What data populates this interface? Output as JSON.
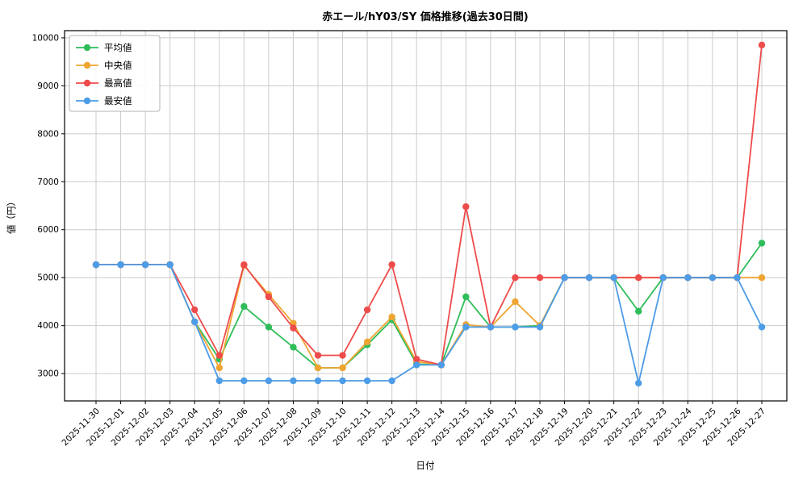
{
  "chart_data": {
    "type": "line",
    "title": "赤エール/hY03/SY 価格推移(過去30日間)",
    "xlabel": "日付",
    "ylabel": "値（円）",
    "grid": true,
    "grid_color": "#cccccc",
    "legend_position": "upper left",
    "x_tick_rotation": 45,
    "ylim": [
      2430,
      10150
    ],
    "yticks": [
      3000,
      4000,
      5000,
      6000,
      7000,
      8000,
      9000,
      10000
    ],
    "categories": [
      "2025-11-30",
      "2025-12-01",
      "2025-12-02",
      "2025-12-03",
      "2025-12-04",
      "2025-12-05",
      "2025-12-06",
      "2025-12-07",
      "2025-12-08",
      "2025-12-09",
      "2025-12-10",
      "2025-12-11",
      "2025-12-12",
      "2025-12-13",
      "2025-12-14",
      "2025-12-15",
      "2025-12-16",
      "2025-12-17",
      "2025-12-18",
      "2025-12-19",
      "2025-12-20",
      "2025-12-21",
      "2025-12-22",
      "2025-12-23",
      "2025-12-24",
      "2025-12-25",
      "2025-12-26",
      "2025-12-27"
    ],
    "series": [
      {
        "id": "mean",
        "name": "平均値",
        "color": "#2ebd59",
        "values": [
          5270,
          5270,
          5270,
          5270,
          4080,
          3300,
          4400,
          3970,
          3550,
          3120,
          3120,
          3600,
          4120,
          3200,
          3180,
          4600,
          3970,
          3970,
          4000,
          5000,
          5000,
          5000,
          4300,
          5000,
          5000,
          5000,
          5000,
          5720
        ]
      },
      {
        "id": "median",
        "name": "中央値",
        "color": "#f0a432",
        "values": [
          5270,
          5270,
          5270,
          5270,
          4080,
          3120,
          5250,
          4650,
          4050,
          3120,
          3120,
          3660,
          4180,
          3250,
          3180,
          4020,
          3970,
          4500,
          4000,
          5000,
          5000,
          5000,
          5000,
          5000,
          5000,
          5000,
          5000,
          5000
        ]
      },
      {
        "id": "max",
        "name": "最高値",
        "color": "#ee4b4b",
        "values": [
          5270,
          5270,
          5270,
          5270,
          4330,
          3380,
          5270,
          4600,
          3950,
          3380,
          3380,
          4330,
          5270,
          3300,
          3180,
          6480,
          3970,
          5000,
          5000,
          5000,
          5000,
          5000,
          5000,
          5000,
          5000,
          5000,
          5000,
          9850
        ]
      },
      {
        "id": "min",
        "name": "最安値",
        "color": "#4d9ce8",
        "values": [
          5270,
          5270,
          5270,
          5270,
          4080,
          2850,
          2850,
          2850,
          2850,
          2850,
          2850,
          2850,
          2850,
          3180,
          3180,
          3970,
          3970,
          3970,
          3970,
          5000,
          5000,
          5000,
          2800,
          5000,
          5000,
          5000,
          5000,
          3970
        ]
      }
    ]
  }
}
